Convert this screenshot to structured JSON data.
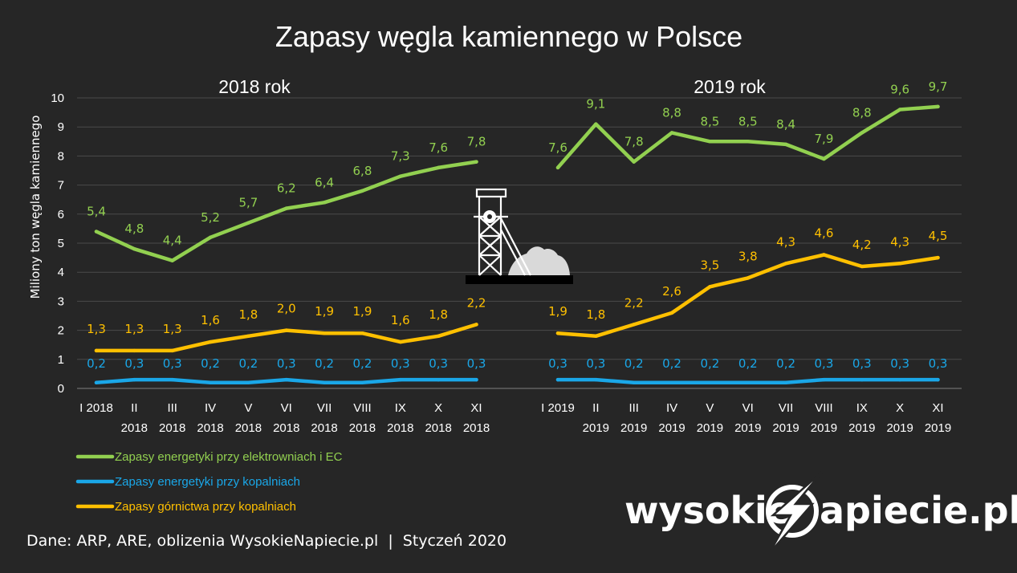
{
  "chart_data": {
    "type": "line",
    "title": "Zapasy węgla kamiennego w Polsce",
    "ylabel": "Miliony ton węgla kamiennego",
    "ylim": [
      0,
      10
    ],
    "y_ticks": [
      "0",
      "1",
      "2",
      "3",
      "4",
      "5",
      "6",
      "7",
      "8",
      "9",
      "10"
    ],
    "grid": true,
    "panels": [
      {
        "label": "2018 rok",
        "categories": [
          [
            "I 2018"
          ],
          [
            "II",
            "2018"
          ],
          [
            "III",
            "2018"
          ],
          [
            "IV",
            "2018"
          ],
          [
            "V",
            "2018"
          ],
          [
            "VI",
            "2018"
          ],
          [
            "VII",
            "2018"
          ],
          [
            "VIII",
            "2018"
          ],
          [
            "IX",
            "2018"
          ],
          [
            "X",
            "2018"
          ],
          [
            "XI",
            "2018"
          ]
        ],
        "series": [
          {
            "name": "Zapasy energetyki przy elektrowniach i EC",
            "color": "#92d050",
            "values": [
              5.4,
              4.8,
              4.4,
              5.2,
              5.7,
              6.2,
              6.4,
              6.8,
              7.3,
              7.6,
              7.8
            ],
            "labels": [
              "5,4",
              "4,8",
              "4,4",
              "5,2",
              "5,7",
              "6,2",
              "6,4",
              "6,8",
              "7,3",
              "7,6",
              "7,8"
            ]
          },
          {
            "name": "Zapasy energetyki przy kopalniach",
            "color": "#1aa7e8",
            "values": [
              0.2,
              0.3,
              0.3,
              0.2,
              0.2,
              0.3,
              0.2,
              0.2,
              0.3,
              0.3,
              0.3
            ],
            "labels": [
              "0,2",
              "0,3",
              "0,3",
              "0,2",
              "0,2",
              "0,3",
              "0,2",
              "0,2",
              "0,3",
              "0,3",
              "0,3"
            ]
          },
          {
            "name": "Zapasy górnictwa przy kopalniach",
            "color": "#ffc000",
            "values": [
              1.3,
              1.3,
              1.3,
              1.6,
              1.8,
              2.0,
              1.9,
              1.9,
              1.6,
              1.8,
              2.2
            ],
            "labels": [
              "1,3",
              "1,3",
              "1,3",
              "1,6",
              "1,8",
              "2,0",
              "1,9",
              "1,9",
              "1,6",
              "1,8",
              "2,2"
            ]
          }
        ]
      },
      {
        "label": "2019 rok",
        "categories": [
          [
            "I 2019"
          ],
          [
            "II",
            "2019"
          ],
          [
            "III",
            "2019"
          ],
          [
            "IV",
            "2019"
          ],
          [
            "V",
            "2019"
          ],
          [
            "VI",
            "2019"
          ],
          [
            "VII",
            "2019"
          ],
          [
            "VIII",
            "2019"
          ],
          [
            "IX",
            "2019"
          ],
          [
            "X",
            "2019"
          ],
          [
            "XI",
            "2019"
          ]
        ],
        "series": [
          {
            "name": "Zapasy energetyki przy elektrowniach i EC",
            "color": "#92d050",
            "values": [
              7.6,
              9.1,
              7.8,
              8.8,
              8.5,
              8.5,
              8.4,
              7.9,
              8.8,
              9.6,
              9.7
            ],
            "labels": [
              "7,6",
              "9,1",
              "7,8",
              "8,8",
              "8,5",
              "8,5",
              "8,4",
              "7,9",
              "8,8",
              "9,6",
              "9,7"
            ]
          },
          {
            "name": "Zapasy energetyki przy kopalniach",
            "color": "#1aa7e8",
            "values": [
              0.3,
              0.3,
              0.2,
              0.2,
              0.2,
              0.2,
              0.2,
              0.3,
              0.3,
              0.3,
              0.3
            ],
            "labels": [
              "0,3",
              "0,3",
              "0,2",
              "0,2",
              "0,2",
              "0,2",
              "0,2",
              "0,3",
              "0,3",
              "0,3",
              "0,3"
            ]
          },
          {
            "name": "Zapasy górnictwa przy kopalniach",
            "color": "#ffc000",
            "values": [
              1.9,
              1.8,
              2.2,
              2.6,
              3.5,
              3.8,
              4.3,
              4.6,
              4.2,
              4.3,
              4.5
            ],
            "labels": [
              "1,9",
              "1,8",
              "2,2",
              "2,6",
              "3,5",
              "3,8",
              "4,3",
              "4,6",
              "4,2",
              "4,3",
              "4,5"
            ]
          }
        ]
      }
    ],
    "legend": {
      "placement": "bottom-left",
      "items": [
        {
          "label": "Zapasy energetyki przy elektrowniach i EC",
          "color": "#92d050"
        },
        {
          "label": "Zapasy energetyki przy kopalniach",
          "color": "#1aa7e8"
        },
        {
          "label": "Zapasy górnictwa przy kopalniach",
          "color": "#ffc000"
        }
      ]
    }
  },
  "footer": {
    "source": "Dane: ARP, ARE, oblizenia WysokieNapiecie.pl  |  Styczeń 2020",
    "logo_left": "wysokie",
    "logo_right": "apiecie.pl"
  },
  "icons": {
    "mine": "mine-shaft-icon",
    "logo_mark": "lightning-bolt-icon"
  }
}
